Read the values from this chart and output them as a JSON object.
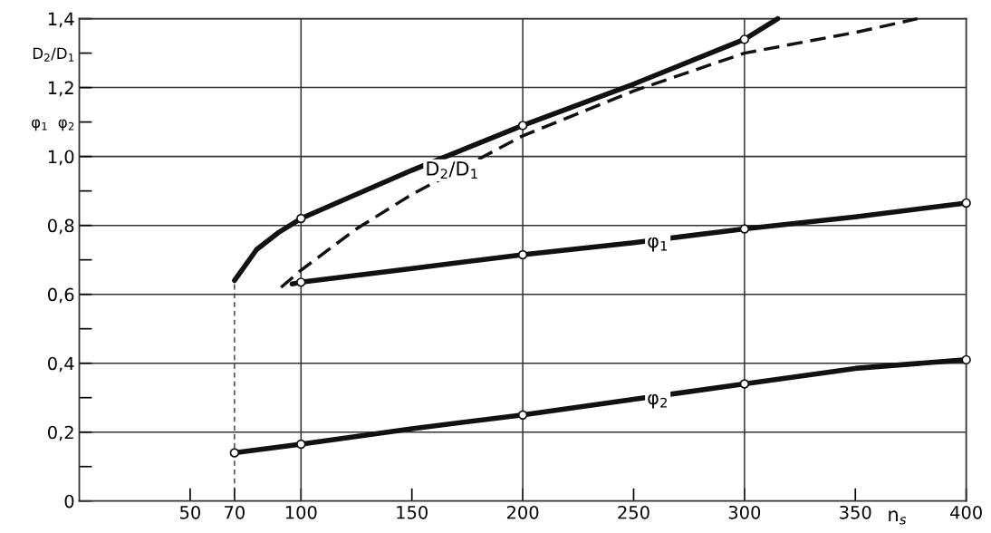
{
  "chart_data": {
    "type": "line",
    "xlabel": "n$_{s}$",
    "xlim": [
      0,
      400
    ],
    "xticks": [
      50,
      70,
      100,
      150,
      200,
      250,
      300,
      350,
      400
    ],
    "ylim": [
      0,
      1.4
    ],
    "yticks": [
      {
        "value": 0,
        "label": "0"
      },
      {
        "value": 0.1,
        "label": null
      },
      {
        "value": 0.2,
        "label": "0,2"
      },
      {
        "value": 0.3,
        "label": null
      },
      {
        "value": 0.4,
        "label": "0,4"
      },
      {
        "value": 0.5,
        "label": null
      },
      {
        "value": 0.6,
        "label": "0,6"
      },
      {
        "value": 0.7,
        "label": null
      },
      {
        "value": 0.8,
        "label": "0,8"
      },
      {
        "value": 0.9,
        "label": null
      },
      {
        "value": 1.0,
        "label": "1,0"
      },
      {
        "value": 1.1,
        "label": "φ$_{1}$  φ$_{2}$"
      },
      {
        "value": 1.2,
        "label": "1,2"
      },
      {
        "value": 1.3,
        "label": "D$_{2}$/D$_{1}$"
      },
      {
        "value": 1.4,
        "label": "1,4"
      }
    ],
    "grid": "y",
    "legend": false,
    "ref_lines": [
      {
        "axis": "x",
        "value": 100
      },
      {
        "axis": "x",
        "value": 200
      },
      {
        "axis": "x",
        "value": 300
      }
    ],
    "series": [
      {
        "name": "D$_{2}$/D$_{1}$",
        "color": "#111111",
        "x": [
          70,
          80,
          90,
          100,
          150,
          200,
          250,
          300,
          315
        ],
        "values": [
          0.64,
          0.73,
          0.78,
          0.82,
          0.96,
          1.09,
          1.21,
          1.34,
          1.4
        ]
      },
      {
        "color": "#111111",
        "line_style": "dashed",
        "x": [
          91,
          100,
          125,
          150,
          200,
          250,
          300,
          350,
          378
        ],
        "values": [
          0.62,
          0.67,
          0.79,
          0.89,
          1.06,
          1.19,
          1.3,
          1.36,
          1.4
        ]
      },
      {
        "name": "φ$_{1}$",
        "color": "#111111",
        "x": [
          96,
          100,
          150,
          200,
          250,
          300,
          350,
          400
        ],
        "values": [
          0.63,
          0.635,
          0.675,
          0.715,
          0.75,
          0.79,
          0.825,
          0.865
        ]
      },
      {
        "name": "φ$_{2}$",
        "color": "#111111",
        "x": [
          70,
          100,
          150,
          200,
          250,
          300,
          350,
          400
        ],
        "values": [
          0.14,
          0.165,
          0.21,
          0.25,
          0.295,
          0.34,
          0.385,
          0.41
        ]
      },
      {
        "color": "#333333",
        "line_style": "dotted",
        "x": [
          70,
          70
        ],
        "values": [
          0,
          0.64
        ]
      },
      {
        "type": "scatter",
        "marker": "circle",
        "color": "#111111",
        "x": [
          100,
          200,
          300,
          100,
          200,
          300,
          400,
          70,
          100,
          200,
          300,
          400
        ],
        "values": [
          0.82,
          1.09,
          1.34,
          0.635,
          0.715,
          0.79,
          0.865,
          0.14,
          0.165,
          0.25,
          0.34,
          0.41
        ]
      }
    ]
  }
}
